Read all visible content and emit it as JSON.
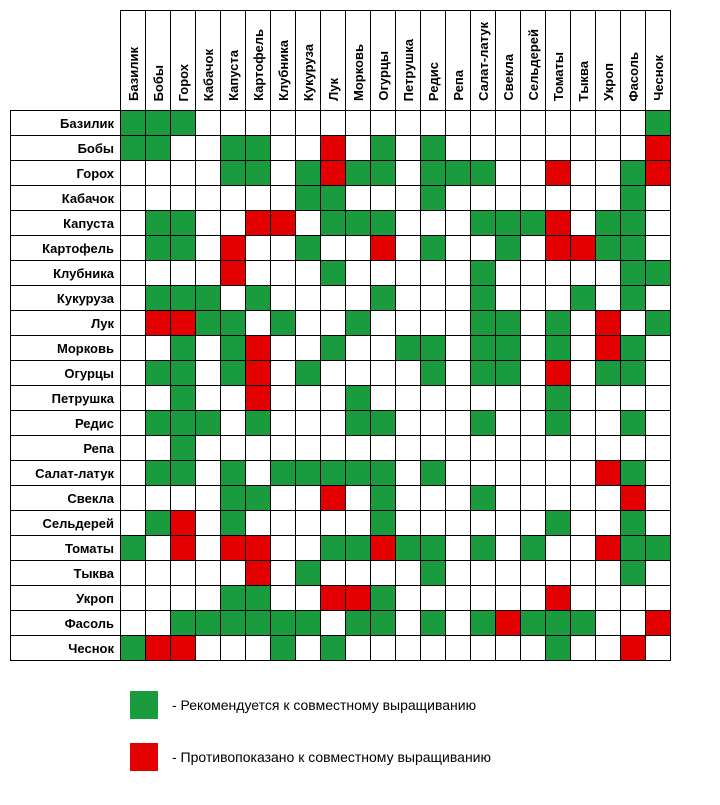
{
  "colors": {
    "good": "#1a9b3e",
    "bad": "#e20000",
    "border": "#000000",
    "background": "#ffffff"
  },
  "typography": {
    "header_fontsize": 13,
    "header_fontweight": "bold",
    "legend_fontsize": 14
  },
  "layout": {
    "cell_size": 25,
    "row_header_width": 110,
    "col_header_height": 100
  },
  "plants": [
    "Базилик",
    "Бобы",
    "Горох",
    "Кабачок",
    "Капуста",
    "Картофель",
    "Клубника",
    "Кукуруза",
    "Лук",
    "Морковь",
    "Огурцы",
    "Петрушка",
    "Редис",
    "Репа",
    "Салат-латук",
    "Свекла",
    "Сельдерей",
    "Томаты",
    "Тыква",
    "Укроп",
    "Фасоль",
    "Чеснок"
  ],
  "matrix": [
    [
      "g",
      "g",
      "g",
      "",
      "",
      "",
      "",
      "",
      "",
      "",
      "",
      "",
      "",
      "",
      "",
      "",
      "",
      "",
      "",
      "",
      "",
      "g"
    ],
    [
      "g",
      "g",
      "",
      "",
      "g",
      "g",
      "",
      "",
      "r",
      "",
      "g",
      "",
      "g",
      "",
      "",
      "",
      "",
      "",
      "",
      "",
      "",
      "r"
    ],
    [
      "",
      "",
      "",
      "",
      "g",
      "g",
      "",
      "g",
      "r",
      "g",
      "g",
      "",
      "g",
      "g",
      "g",
      "",
      "",
      "r",
      "",
      "",
      "g",
      "r"
    ],
    [
      "",
      "",
      "",
      "",
      "",
      "",
      "",
      "g",
      "g",
      "",
      "",
      "",
      "g",
      "",
      "",
      "",
      "",
      "",
      "",
      "",
      "g",
      ""
    ],
    [
      "",
      "g",
      "g",
      "",
      "",
      "r",
      "r",
      "",
      "g",
      "g",
      "g",
      "",
      "",
      "",
      "g",
      "g",
      "g",
      "r",
      "",
      "g",
      "g",
      ""
    ],
    [
      "",
      "g",
      "g",
      "",
      "r",
      "",
      "",
      "g",
      "",
      "",
      "r",
      "",
      "g",
      "",
      "",
      "g",
      "",
      "r",
      "r",
      "g",
      "g",
      ""
    ],
    [
      "",
      "",
      "",
      "",
      "r",
      "",
      "",
      "",
      "g",
      "",
      "",
      "",
      "",
      "",
      "g",
      "",
      "",
      "",
      "",
      "",
      "g",
      "g"
    ],
    [
      "",
      "g",
      "g",
      "g",
      "",
      "g",
      "",
      "",
      "",
      "",
      "g",
      "",
      "",
      "",
      "g",
      "",
      "",
      "",
      "g",
      "",
      "g",
      ""
    ],
    [
      "",
      "r",
      "r",
      "g",
      "g",
      "",
      "g",
      "",
      "",
      "g",
      "",
      "",
      "",
      "",
      "g",
      "g",
      "",
      "g",
      "",
      "r",
      "",
      "g"
    ],
    [
      "",
      "",
      "g",
      "",
      "g",
      "r",
      "",
      "",
      "g",
      "",
      "",
      "g",
      "g",
      "",
      "g",
      "g",
      "",
      "g",
      "",
      "r",
      "g",
      ""
    ],
    [
      "",
      "g",
      "g",
      "",
      "g",
      "r",
      "",
      "g",
      "",
      "",
      "",
      "",
      "g",
      "",
      "g",
      "g",
      "",
      "r",
      "",
      "g",
      "g",
      ""
    ],
    [
      "",
      "",
      "g",
      "",
      "",
      "r",
      "",
      "",
      "",
      "g",
      "",
      "",
      "",
      "",
      "",
      "",
      "",
      "g",
      "",
      "",
      "",
      ""
    ],
    [
      "",
      "g",
      "g",
      "g",
      "",
      "g",
      "",
      "",
      "",
      "g",
      "g",
      "",
      "",
      "",
      "g",
      "",
      "",
      "g",
      "",
      "",
      "g",
      ""
    ],
    [
      "",
      "",
      "g",
      "",
      "",
      "",
      "",
      "",
      "",
      "",
      "",
      "",
      "",
      "",
      "",
      "",
      "",
      "",
      "",
      "",
      "",
      ""
    ],
    [
      "",
      "g",
      "g",
      "",
      "g",
      "",
      "g",
      "g",
      "g",
      "g",
      "g",
      "",
      "g",
      "",
      "",
      "",
      "",
      "",
      "",
      "r",
      "g",
      ""
    ],
    [
      "",
      "",
      "",
      "",
      "g",
      "g",
      "",
      "",
      "r",
      "",
      "g",
      "",
      "",
      "",
      "g",
      "",
      "",
      "",
      "",
      "",
      "r",
      ""
    ],
    [
      "",
      "g",
      "r",
      "",
      "g",
      "",
      "",
      "",
      "",
      "",
      "g",
      "",
      "",
      "",
      "",
      "",
      "",
      "g",
      "",
      "",
      "g",
      ""
    ],
    [
      "g",
      "",
      "r",
      "",
      "r",
      "r",
      "",
      "",
      "g",
      "g",
      "r",
      "g",
      "g",
      "",
      "g",
      "",
      "g",
      "",
      "",
      "r",
      "g",
      "g"
    ],
    [
      "",
      "",
      "",
      "",
      "",
      "r",
      "",
      "g",
      "",
      "",
      "",
      "",
      "g",
      "",
      "",
      "",
      "",
      "",
      "",
      "",
      "g",
      ""
    ],
    [
      "",
      "",
      "",
      "",
      "g",
      "g",
      "",
      "",
      "r",
      "r",
      "g",
      "",
      "",
      "",
      "",
      "",
      "",
      "r",
      "",
      "",
      "",
      ""
    ],
    [
      "",
      "",
      "g",
      "g",
      "g",
      "g",
      "g",
      "g",
      "",
      "g",
      "g",
      "",
      "g",
      "",
      "g",
      "r",
      "g",
      "g",
      "g",
      "",
      "",
      "r"
    ],
    [
      "g",
      "r",
      "r",
      "",
      "",
      "",
      "g",
      "",
      "g",
      "",
      "",
      "",
      "",
      "",
      "",
      "",
      "",
      "g",
      "",
      "",
      "r",
      ""
    ]
  ],
  "legend": {
    "good": "-  Рекомендуется к совместному выращиванию",
    "bad": "-  Противопоказано к совместному выращиванию"
  }
}
